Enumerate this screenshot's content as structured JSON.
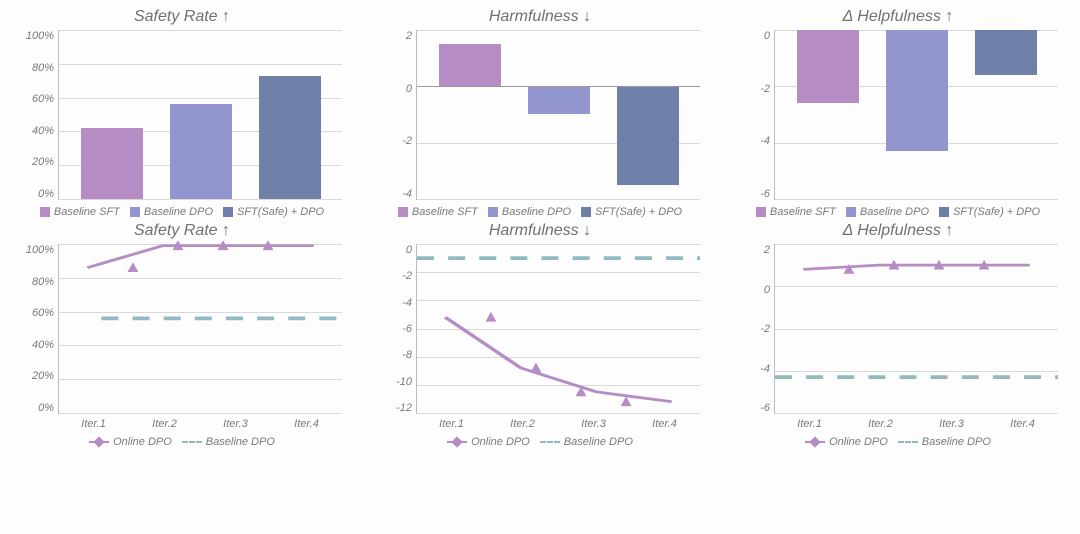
{
  "colors": {
    "c1": "#b58cc4",
    "c2": "#9295ce",
    "c3": "#6f80a8",
    "grid": "#d9d9d9",
    "text": "#7a7a7a",
    "baseline_dash": "#93b9c2"
  },
  "legend_bars": {
    "items": [
      {
        "label": "Baseline SFT",
        "colorKey": "c1"
      },
      {
        "label": "Baseline DPO",
        "colorKey": "c2"
      },
      {
        "label": "SFT(Safe) + DPO",
        "colorKey": "c3"
      }
    ]
  },
  "legend_lines": {
    "items": [
      {
        "label": "Online DPO",
        "style": "solid",
        "colorKey": "c1",
        "marker": true
      },
      {
        "label": "Baseline DPO",
        "style": "dash",
        "colorKey": "baseline_dash",
        "marker": false
      }
    ]
  },
  "row1": {
    "panels": [
      {
        "title": "Safety Rate ↑",
        "type": "bar",
        "ymin": 0,
        "ymax": 100,
        "ystep": 20,
        "ysuffix": "%",
        "values": [
          42,
          56,
          73
        ],
        "colorKeys": [
          "c1",
          "c2",
          "c3"
        ]
      },
      {
        "title": "Harmfulness ↓",
        "type": "bar",
        "ymin": -4,
        "ymax": 2,
        "ystep": 2,
        "ysuffix": "",
        "values": [
          1.5,
          -1.0,
          -3.5
        ],
        "colorKeys": [
          "c1",
          "c2",
          "c3"
        ]
      },
      {
        "title": "Δ Helpfulness ↑",
        "type": "bar",
        "ymin": -6,
        "ymax": 0,
        "ystep": 2,
        "ysuffix": "",
        "values": [
          -2.6,
          -4.3,
          -1.6
        ],
        "colorKeys": [
          "c1",
          "c2",
          "c3"
        ]
      }
    ]
  },
  "row2": {
    "xlabels": [
      "Iter.1",
      "Iter.2",
      "Iter.3",
      "Iter.4"
    ],
    "panels": [
      {
        "title": "Safety Rate ↑",
        "type": "line",
        "ymin": 0,
        "ymax": 100,
        "ystep": 20,
        "ysuffix": "%",
        "series": {
          "colorKey": "c1",
          "values": [
            86,
            99,
            99,
            99
          ]
        },
        "baseline": {
          "colorKey": "baseline_dash",
          "value": 56,
          "xstart": 0.15,
          "xend": 1.0
        }
      },
      {
        "title": "Harmfulness ↓",
        "type": "line",
        "ymin": -12,
        "ymax": 0,
        "ystep": 2,
        "ysuffix": "",
        "series": {
          "colorKey": "c1",
          "values": [
            -5.2,
            -8.8,
            -10.5,
            -11.2
          ]
        },
        "baseline": {
          "colorKey": "baseline_dash",
          "value": -1.0,
          "xstart": 0.0,
          "xend": 1.0
        }
      },
      {
        "title": "Δ Helpfulness ↑",
        "type": "line",
        "ymin": -6,
        "ymax": 2,
        "ystep": 2,
        "ysuffix": "",
        "series": {
          "colorKey": "c1",
          "values": [
            0.8,
            1.0,
            1.0,
            1.0
          ]
        },
        "baseline": {
          "colorKey": "baseline_dash",
          "value": -4.3,
          "xstart": 0.0,
          "xend": 1.0
        }
      }
    ]
  }
}
